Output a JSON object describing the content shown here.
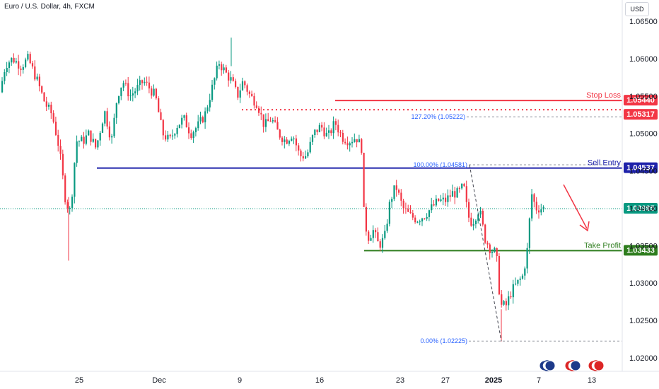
{
  "header": {
    "title": "Euro / U.S. Dollar, 4h, FXCM"
  },
  "currency_button": "USD",
  "chart_data": {
    "type": "candlestick",
    "title": "Euro / U.S. Dollar, 4h, FXCM",
    "y_ticks": [
      "1.06500",
      "1.06000",
      "1.05500",
      "1.05000",
      "1.04500",
      "1.04000",
      "1.03500",
      "1.03000",
      "1.02500",
      "1.02000"
    ],
    "x_ticks": [
      {
        "label": "25",
        "bold": false
      },
      {
        "label": "Dec",
        "bold": false
      },
      {
        "label": "9",
        "bold": false
      },
      {
        "label": "16",
        "bold": false
      },
      {
        "label": "23",
        "bold": false
      },
      {
        "label": "27",
        "bold": false
      },
      {
        "label": "2025",
        "bold": true
      },
      {
        "label": "7",
        "bold": false
      },
      {
        "label": "13",
        "bold": false
      }
    ],
    "ylim": [
      1.0195,
      1.0672
    ],
    "current_price": {
      "value": 1.03995,
      "label": "1.03995",
      "color": "#089981"
    },
    "levels": [
      {
        "name": "Stop Loss",
        "value": 1.0544,
        "label": "1.05440",
        "color": "#f23645"
      },
      {
        "name": "",
        "value": 1.05317,
        "label": "1.05317",
        "color": "#f23645",
        "style": "dotted"
      },
      {
        "name": "Sell Entry",
        "value": 1.04537,
        "label": "1.04537",
        "color": "#1e22aa"
      },
      {
        "name": "Take Profit",
        "value": 1.03433,
        "label": "1.03433",
        "color": "#2e7d1e"
      }
    ],
    "fibonacci": [
      {
        "label": "127.20% (1.05222)",
        "value": 1.05222
      },
      {
        "label": "100.00% (1.04581)",
        "value": 1.04581
      },
      {
        "label": "0.00% (1.02225)",
        "value": 1.02225
      }
    ],
    "up_color": "#089981",
    "down_color": "#f23645",
    "annotation": "arrow pointing down-right toward Take Profit"
  },
  "footer_icons": [
    "economic-events-icon",
    "us-eu-events-icon",
    "us-events-icon"
  ]
}
